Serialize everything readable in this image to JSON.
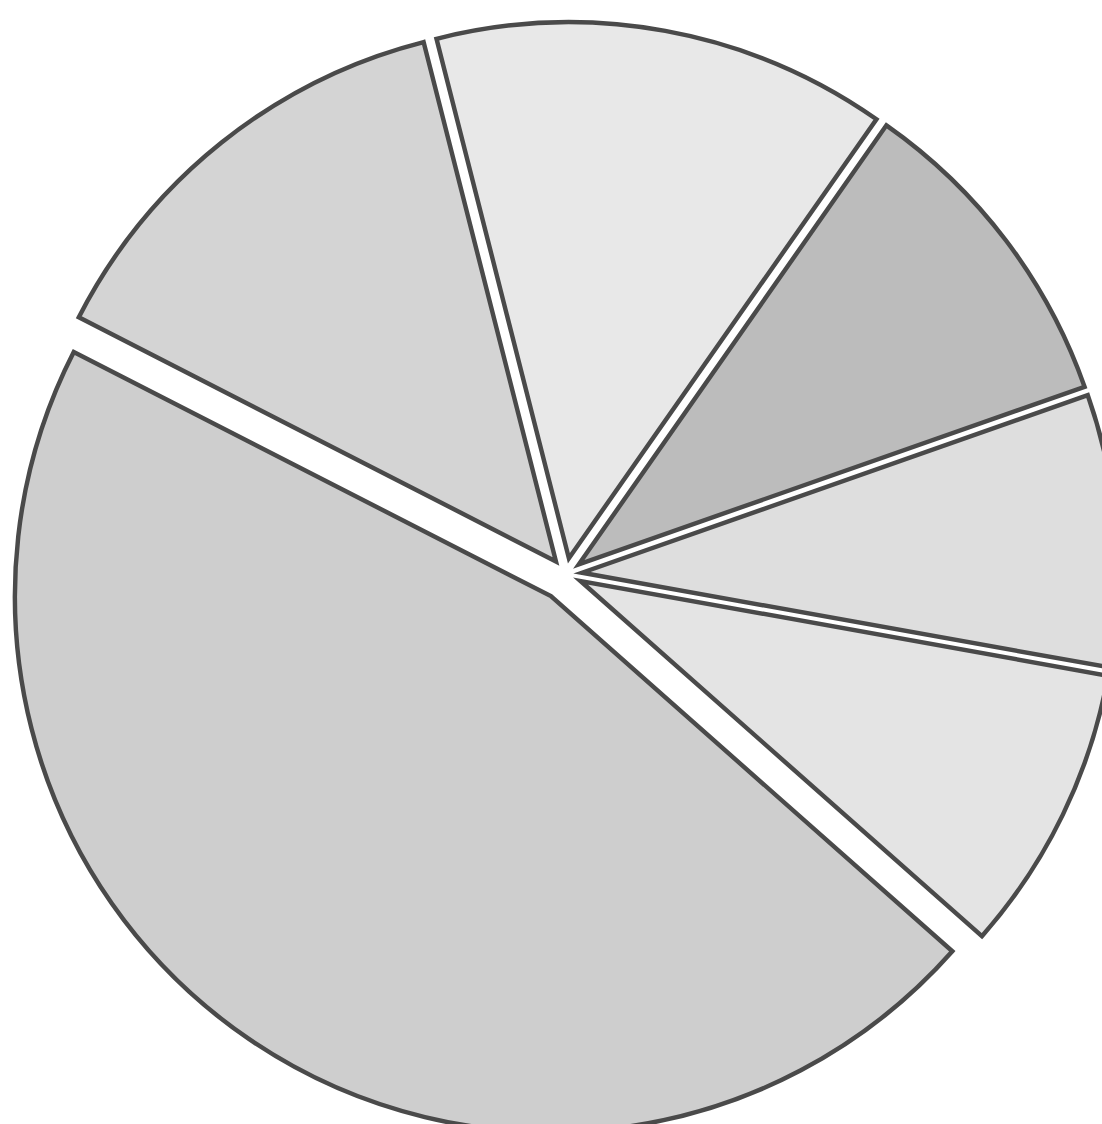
{
  "chart_data": {
    "type": "pie",
    "categories": [
      null,
      null,
      null,
      null,
      null,
      null
    ],
    "values": [
      8.7,
      8.2,
      9.9,
      13.7,
      13.5,
      46.0
    ],
    "colors": [
      "#e4e4e4",
      "#dedede",
      "#bcbcbc",
      "#e8e8e8",
      "#d4d4d4",
      "#cecece"
    ],
    "legend": false
  }
}
